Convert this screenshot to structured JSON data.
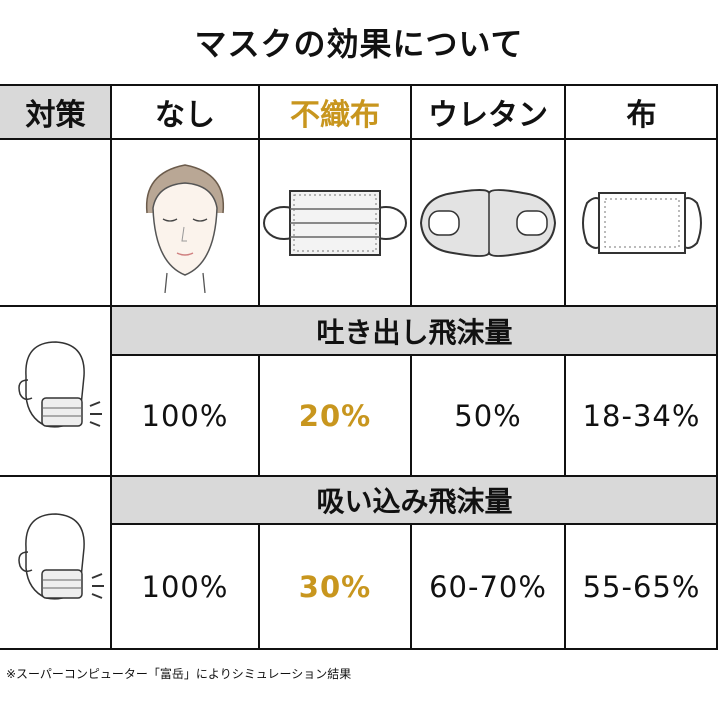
{
  "title": "マスクの効果について",
  "header": {
    "corner": "対策",
    "columns": [
      "なし",
      "不織布",
      "ウレタン",
      "布"
    ],
    "highlight_color": "#c8961e",
    "header_bg": "#d9d9d9"
  },
  "sections": [
    {
      "label": "吐き出し飛沫量",
      "values": [
        "100%",
        "20%",
        "50%",
        "18-34%"
      ]
    },
    {
      "label": "吸い込み飛沫量",
      "values": [
        "100%",
        "30%",
        "60-70%",
        "55-65%"
      ]
    }
  ],
  "icons": [
    "face-icon",
    "nonwoven-mask-icon",
    "urethane-mask-icon",
    "cloth-mask-icon",
    "exhale-person-icon",
    "inhale-person-icon"
  ],
  "footnote": "※スーパーコンピューター「富岳」によりシミュレーション結果"
}
